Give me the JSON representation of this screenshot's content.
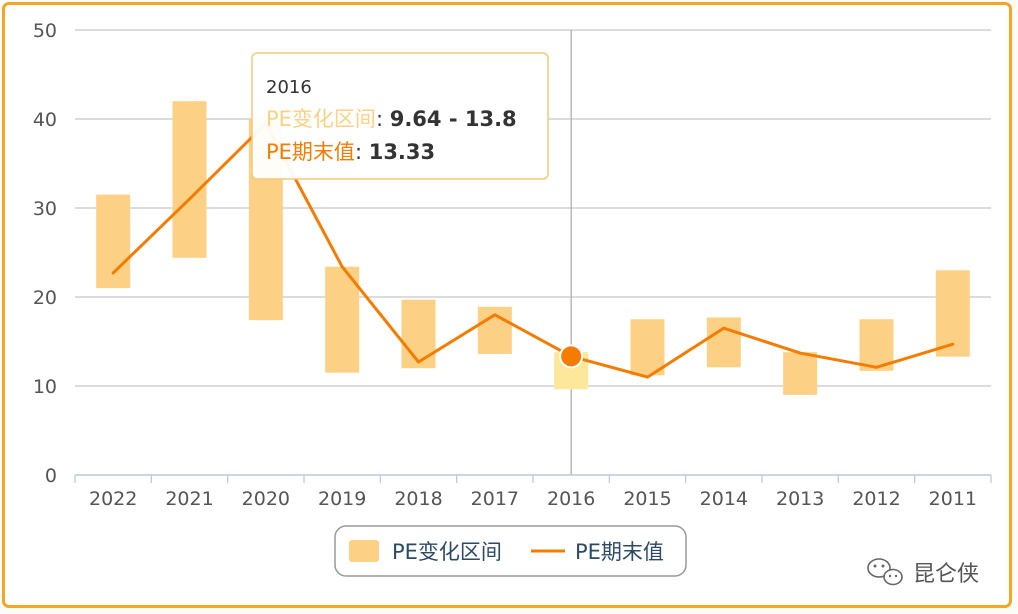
{
  "chart_data": {
    "type": "bar",
    "categories": [
      "2022",
      "2021",
      "2020",
      "2019",
      "2018",
      "2017",
      "2016",
      "2015",
      "2014",
      "2013",
      "2012",
      "2011"
    ],
    "series": [
      {
        "name": "PE变化区间",
        "kind": "range-bar",
        "color": "#fdd185",
        "highlight_color": "#fde79a",
        "low": [
          21.0,
          24.4,
          17.4,
          11.5,
          12.0,
          13.6,
          9.64,
          11.2,
          12.1,
          9.0,
          11.7,
          13.3
        ],
        "high": [
          31.5,
          42.0,
          40.0,
          23.4,
          19.7,
          18.9,
          13.8,
          17.5,
          17.7,
          13.8,
          17.5,
          23.0
        ]
      },
      {
        "name": "PE期末值",
        "kind": "line",
        "color": "#f57c00",
        "values": [
          22.7,
          31.0,
          39.5,
          23.4,
          12.7,
          18.0,
          13.33,
          11.0,
          16.5,
          13.7,
          12.1,
          14.7
        ]
      }
    ],
    "ylim": [
      0,
      50
    ],
    "yticks": [
      0,
      10,
      20,
      30,
      40,
      50
    ],
    "grid": true,
    "legend_position": "bottom-center",
    "hover_category": "2016"
  },
  "tooltip": {
    "title": "2016",
    "range_label": "PE变化区间",
    "range_value": "9.64 - 13.8",
    "end_label": "PE期末值",
    "end_value": "13.33"
  },
  "watermark": {
    "text": "昆仑侠",
    "icon": "wechat-icon"
  }
}
